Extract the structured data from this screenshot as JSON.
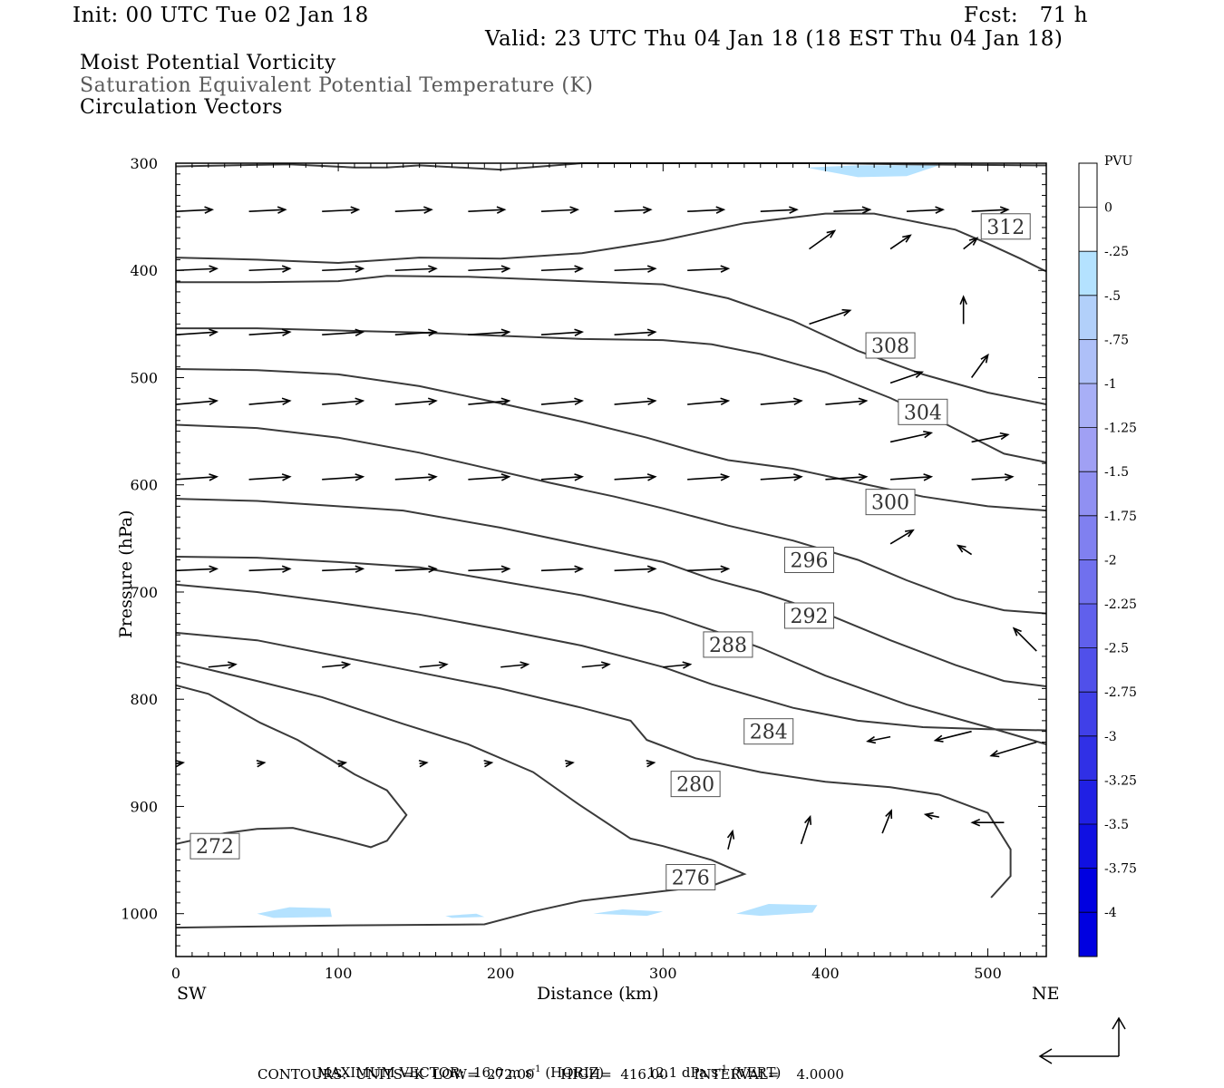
{
  "header": {
    "init": "Init: 00 UTC Tue 02 Jan 18",
    "fcst": "Fcst:   71 h",
    "valid": "Valid: 23 UTC Thu 04 Jan 18 (18 EST Thu 04 Jan 18)"
  },
  "titles": {
    "line1": "Moist Potential Vorticity",
    "line2": "Saturation Equivalent Potential Temperature (K)",
    "line3": "Circulation Vectors"
  },
  "colors": {
    "contour": "#3a3a3a",
    "vector": "#000000",
    "frame": "#000000",
    "pv_light": "#b4e2ff"
  },
  "chart_data": {
    "type": "cross-section",
    "xlabel": "Distance (km)",
    "ylabel": "Pressure (hPa)",
    "xlim": [
      0,
      536
    ],
    "ylim": [
      1040,
      300
    ],
    "x_ticks": [
      0,
      100,
      200,
      300,
      400,
      500
    ],
    "y_ticks": [
      300,
      400,
      500,
      600,
      700,
      800,
      900,
      1000
    ],
    "left_end": "SW",
    "right_end": "NE",
    "colorbar": {
      "unit": "PVU",
      "labels": [
        "0",
        "-.25",
        "-.5",
        "-.75",
        "-1",
        "-1.25",
        "-1.5",
        "-1.75",
        "-2",
        "-2.25",
        "-2.5",
        "-2.75",
        "-3",
        "-3.25",
        "-3.5",
        "-3.75",
        "-4"
      ],
      "colors": [
        "#ffffff",
        "#ffffff",
        "#b4e2ff",
        "#b2d0fa",
        "#aec0f8",
        "#a8aff6",
        "#a0a0f4",
        "#9090f2",
        "#8080f0",
        "#7070ee",
        "#6060ec",
        "#5050ea",
        "#4040e8",
        "#3030e6",
        "#2020e4",
        "#1010e2",
        "#0000e0",
        "#0000e0"
      ]
    },
    "contours": [
      {
        "label": "272",
        "label_at": [
          24,
          937
        ],
        "points": [
          [
            0,
            935
          ],
          [
            30,
            925
          ],
          [
            50,
            921
          ],
          [
            72,
            920
          ],
          [
            100,
            930
          ],
          [
            120,
            938
          ],
          [
            130,
            932
          ],
          [
            142,
            908
          ],
          [
            130,
            885
          ],
          [
            110,
            870
          ],
          [
            95,
            856
          ],
          [
            75,
            838
          ],
          [
            52,
            822
          ],
          [
            20,
            795
          ],
          [
            0,
            787
          ]
        ]
      },
      {
        "label": "276",
        "label_at": [
          317,
          966
        ],
        "points": [
          [
            0,
            1013
          ],
          [
            100,
            1011
          ],
          [
            190,
            1010
          ],
          [
            220,
            998
          ],
          [
            250,
            988
          ],
          [
            300,
            979
          ],
          [
            330,
            974
          ],
          [
            350,
            963
          ],
          [
            330,
            950
          ],
          [
            300,
            937
          ],
          [
            280,
            930
          ],
          [
            248,
            898
          ],
          [
            220,
            868
          ],
          [
            180,
            842
          ],
          [
            140,
            823
          ],
          [
            90,
            798
          ],
          [
            50,
            783
          ],
          [
            0,
            765
          ]
        ]
      },
      {
        "label": "280",
        "label_at": [
          320,
          879
        ],
        "points": [
          [
            0,
            738
          ],
          [
            50,
            745
          ],
          [
            100,
            760
          ],
          [
            150,
            775
          ],
          [
            200,
            790
          ],
          [
            250,
            808
          ],
          [
            280,
            820
          ],
          [
            290,
            838
          ],
          [
            320,
            855
          ],
          [
            360,
            868
          ],
          [
            400,
            877
          ],
          [
            440,
            882
          ],
          [
            470,
            889
          ],
          [
            500,
            906
          ],
          [
            514,
            940
          ],
          [
            514,
            965
          ],
          [
            502,
            985
          ]
        ]
      },
      {
        "label": "284",
        "label_at": [
          365,
          830
        ],
        "points": [
          [
            0,
            693
          ],
          [
            50,
            700
          ],
          [
            100,
            710
          ],
          [
            150,
            721
          ],
          [
            200,
            735
          ],
          [
            250,
            750
          ],
          [
            300,
            770
          ],
          [
            330,
            786
          ],
          [
            380,
            808
          ],
          [
            420,
            820
          ],
          [
            460,
            826
          ],
          [
            500,
            828
          ],
          [
            536,
            829
          ]
        ]
      },
      {
        "label": "288",
        "label_at": [
          340,
          749
        ],
        "points": [
          [
            0,
            667
          ],
          [
            50,
            668
          ],
          [
            100,
            672
          ],
          [
            150,
            677
          ],
          [
            200,
            690
          ],
          [
            250,
            703
          ],
          [
            300,
            720
          ],
          [
            335,
            738
          ],
          [
            360,
            752
          ],
          [
            400,
            778
          ],
          [
            450,
            805
          ],
          [
            500,
            826
          ],
          [
            536,
            842
          ]
        ]
      },
      {
        "label": "292",
        "label_at": [
          390,
          722
        ],
        "points": [
          [
            0,
            613
          ],
          [
            50,
            615
          ],
          [
            100,
            620
          ],
          [
            140,
            624
          ],
          [
            200,
            640
          ],
          [
            250,
            656
          ],
          [
            300,
            672
          ],
          [
            330,
            688
          ],
          [
            360,
            700
          ],
          [
            400,
            720
          ],
          [
            440,
            745
          ],
          [
            480,
            768
          ],
          [
            510,
            783
          ],
          [
            536,
            788
          ]
        ]
      },
      {
        "label": "296",
        "label_at": [
          390,
          670
        ],
        "points": [
          [
            0,
            544
          ],
          [
            50,
            547
          ],
          [
            100,
            556
          ],
          [
            150,
            570
          ],
          [
            190,
            584
          ],
          [
            230,
            598
          ],
          [
            270,
            611
          ],
          [
            300,
            622
          ],
          [
            340,
            638
          ],
          [
            380,
            652
          ],
          [
            420,
            670
          ],
          [
            450,
            689
          ],
          [
            480,
            706
          ],
          [
            510,
            717
          ],
          [
            536,
            720
          ]
        ]
      },
      {
        "label": "300",
        "label_at": [
          440,
          616
        ],
        "points": [
          [
            0,
            492
          ],
          [
            50,
            493
          ],
          [
            100,
            497
          ],
          [
            150,
            508
          ],
          [
            200,
            524
          ],
          [
            250,
            541
          ],
          [
            290,
            556
          ],
          [
            320,
            569
          ],
          [
            340,
            577
          ],
          [
            380,
            585
          ],
          [
            420,
            598
          ],
          [
            460,
            611
          ],
          [
            500,
            620
          ],
          [
            536,
            624
          ]
        ]
      },
      {
        "label": "304",
        "label_at": [
          460,
          532
        ],
        "points": [
          [
            0,
            454
          ],
          [
            50,
            454
          ],
          [
            100,
            456
          ],
          [
            150,
            458
          ],
          [
            200,
            461
          ],
          [
            250,
            464
          ],
          [
            300,
            465
          ],
          [
            330,
            469
          ],
          [
            360,
            478
          ],
          [
            400,
            495
          ],
          [
            440,
            519
          ],
          [
            475,
            544
          ],
          [
            510,
            571
          ],
          [
            536,
            579
          ]
        ]
      },
      {
        "label": "308",
        "label_at": [
          440,
          470
        ],
        "points": [
          [
            0,
            411
          ],
          [
            50,
            411
          ],
          [
            100,
            410
          ],
          [
            130,
            405
          ],
          [
            180,
            406
          ],
          [
            250,
            410
          ],
          [
            300,
            413
          ],
          [
            340,
            426
          ],
          [
            380,
            447
          ],
          [
            420,
            475
          ],
          [
            460,
            497
          ],
          [
            500,
            514
          ],
          [
            536,
            525
          ]
        ]
      },
      {
        "label": "312",
        "label_at": [
          511,
          359
        ],
        "points": [
          [
            0,
            388
          ],
          [
            50,
            390
          ],
          [
            100,
            393
          ],
          [
            150,
            388
          ],
          [
            200,
            389
          ],
          [
            250,
            384
          ],
          [
            300,
            372
          ],
          [
            350,
            356
          ],
          [
            400,
            347
          ],
          [
            430,
            347
          ],
          [
            450,
            353
          ],
          [
            480,
            362
          ],
          [
            500,
            375
          ],
          [
            520,
            389
          ],
          [
            536,
            401
          ]
        ]
      },
      {
        "label": "",
        "label_at": null,
        "points": [
          [
            0,
            303
          ],
          [
            70,
            301
          ],
          [
            110,
            304
          ],
          [
            130,
            304
          ],
          [
            150,
            302
          ],
          [
            200,
            306
          ],
          [
            250,
            300
          ],
          [
            300,
            300
          ],
          [
            350,
            300
          ],
          [
            400,
            300
          ],
          [
            450,
            301
          ],
          [
            536,
            302
          ]
        ]
      }
    ],
    "vectors": [
      {
        "x": 0,
        "p": 427,
        "dx": 60,
        "dy": -10
      },
      {
        "x": 50,
        "p": 434,
        "dx": 45,
        "dy": -3
      },
      {
        "x": 100,
        "p": 432,
        "dx": 42,
        "dy": -3
      },
      {
        "x": 150,
        "p": 428,
        "dx": 40,
        "dy": -3
      },
      {
        "x": 200,
        "p": 428,
        "dx": 45,
        "dy": -2
      },
      {
        "x": 240,
        "p": 430,
        "dx": 45,
        "dy": -1
      },
      {
        "x": 290,
        "p": 430,
        "dx": 40,
        "dy": -3
      },
      {
        "x": 330,
        "p": 432,
        "dx": 40,
        "dy": -2
      },
      {
        "x": 370,
        "p": 434,
        "dx": 20,
        "dy": -3
      },
      {
        "x": 420,
        "p": 440,
        "dx": 20,
        "dy": -4
      },
      {
        "x": 470,
        "p": 437,
        "dx": 40,
        "dy": 0
      },
      {
        "x": 50,
        "p": 425,
        "dx": 40,
        "dy": -5
      },
      {
        "x": 100,
        "p": 421,
        "dx": 35,
        "dy": -3
      },
      {
        "x": 150,
        "p": 433,
        "dx": 30,
        "dy": -5
      },
      {
        "x": 0,
        "p": 412,
        "dx": 50,
        "dy": -5
      },
      {
        "x": 50,
        "p": 426,
        "dx": 35,
        "dy": -3
      },
      {
        "x": 100,
        "p": 434,
        "dx": 40,
        "dy": -3
      },
      {
        "x": 150,
        "p": 446,
        "dx": 40,
        "dy": -3
      },
      {
        "x": 200,
        "p": 450,
        "dx": 45,
        "dy": -3
      },
      {
        "x": 245,
        "p": 456,
        "dx": 45,
        "dy": -3
      },
      {
        "x": 290,
        "p": 460,
        "dx": 40,
        "dy": -5
      },
      {
        "x": 330,
        "p": 468,
        "dx": 20,
        "dy": -5
      },
      {
        "x": 0,
        "p": 441,
        "dx": 50,
        "dy": -5
      },
      {
        "x": 50,
        "p": 444,
        "dx": 45,
        "dy": -3
      },
      {
        "x": 100,
        "p": 446,
        "dx": 45,
        "dy": -3
      }
    ]
  },
  "footer": {
    "max_vector_label": "MAXIMUM VECTOR:",
    "max_vector_horiz": "16.0 m s",
    "horiz_sup": "-1",
    "horiz_tag": "(HORIZ)",
    "max_vector_vert": "12.1 dPa s",
    "vert_sup": "-1",
    "vert_tag": "(VERT)",
    "contours": "CONTOURS:  UNITS=K  LOW=  272.00      HIGH=  416.00      INTERVAL=    4.0000"
  }
}
